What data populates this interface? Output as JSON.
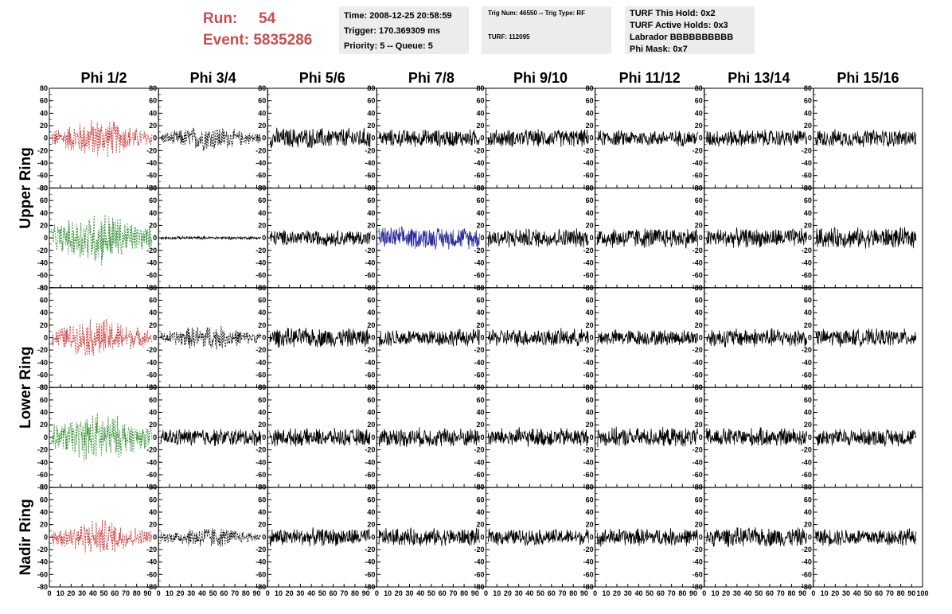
{
  "header": {
    "run_label": "Run:",
    "run_value": "54",
    "event_label": "Event:",
    "event_value": "5835286",
    "run_color": "#cc4b4b"
  },
  "info_time": {
    "time": "Time: 2008-12-25 20:58:59",
    "trigger": "Trigger: 170.369309 ms",
    "priority": "Priority: 5 -- Queue: 5"
  },
  "info_trig": {
    "trig": "Trig Num: 46550 -- Trig Type: RF",
    "turf": "TURF: 112095"
  },
  "info_turf": {
    "this_hold": "TURF This Hold: 0x2",
    "active_holds": "TURF Active Holds: 0x3",
    "labrador": "Labrador BBBBBBBBBB",
    "phi_mask": "Phi Mask: 0x7"
  },
  "chart_data": {
    "type": "line",
    "columns": [
      "Phi 1/2",
      "Phi 3/4",
      "Phi 5/6",
      "Phi 7/8",
      "Phi 9/10",
      "Phi 11/12",
      "Phi 13/14",
      "Phi 15/16"
    ],
    "rows": [
      "Upper Ring",
      "Upper Ring",
      "Lower Ring",
      "Lower Ring",
      "Nadir Ring"
    ],
    "row_labels": [
      {
        "text": "Upper Ring",
        "rows": [
          0,
          1
        ]
      },
      {
        "text": "Lower Ring",
        "rows": [
          2,
          3
        ]
      },
      {
        "text": "Nadir Ring",
        "rows": [
          4
        ]
      }
    ],
    "xlim": [
      0,
      100
    ],
    "ylim": [
      -80,
      80
    ],
    "x_ticks": [
      0,
      10,
      20,
      30,
      40,
      50,
      60,
      70,
      80,
      90
    ],
    "y_ticks": [
      -80,
      -60,
      -40,
      -20,
      0,
      20,
      40,
      60,
      80
    ],
    "grid": false,
    "colors": {
      "red": "#c83232",
      "green": "#2a8c2a",
      "blue": "#2b2b9c",
      "black": "#000000"
    },
    "panels": [
      [
        {
          "color": "red",
          "dashed": true,
          "amp": 22
        },
        {
          "color": "black",
          "dashed": true,
          "amp": 14
        },
        {
          "color": "black",
          "dashed": false,
          "amp": 14
        },
        {
          "color": "black",
          "dashed": false,
          "amp": 12
        },
        {
          "color": "black",
          "dashed": false,
          "amp": 12
        },
        {
          "color": "black",
          "dashed": false,
          "amp": 11
        },
        {
          "color": "black",
          "dashed": false,
          "amp": 12
        },
        {
          "color": "black",
          "dashed": false,
          "amp": 12
        }
      ],
      [
        {
          "color": "green",
          "dashed": true,
          "amp": 30
        },
        {
          "color": "black",
          "dashed": false,
          "amp": 2
        },
        {
          "color": "black",
          "dashed": false,
          "amp": 11
        },
        {
          "color": "blue",
          "dashed": false,
          "amp": 15
        },
        {
          "color": "black",
          "dashed": false,
          "amp": 13
        },
        {
          "color": "black",
          "dashed": false,
          "amp": 14
        },
        {
          "color": "black",
          "dashed": false,
          "amp": 13
        },
        {
          "color": "black",
          "dashed": false,
          "amp": 14
        }
      ],
      [
        {
          "color": "red",
          "dashed": true,
          "amp": 22
        },
        {
          "color": "black",
          "dashed": true,
          "amp": 14
        },
        {
          "color": "black",
          "dashed": false,
          "amp": 13
        },
        {
          "color": "black",
          "dashed": false,
          "amp": 12
        },
        {
          "color": "black",
          "dashed": false,
          "amp": 12
        },
        {
          "color": "black",
          "dashed": false,
          "amp": 11
        },
        {
          "color": "black",
          "dashed": false,
          "amp": 13
        },
        {
          "color": "black",
          "dashed": false,
          "amp": 12
        }
      ],
      [
        {
          "color": "green",
          "dashed": true,
          "amp": 28
        },
        {
          "color": "black",
          "dashed": false,
          "amp": 12
        },
        {
          "color": "black",
          "dashed": false,
          "amp": 12
        },
        {
          "color": "black",
          "dashed": false,
          "amp": 13
        },
        {
          "color": "black",
          "dashed": false,
          "amp": 13
        },
        {
          "color": "black",
          "dashed": false,
          "amp": 13
        },
        {
          "color": "black",
          "dashed": false,
          "amp": 13
        },
        {
          "color": "black",
          "dashed": false,
          "amp": 12
        }
      ],
      [
        {
          "color": "red",
          "dashed": true,
          "amp": 20
        },
        {
          "color": "black",
          "dashed": true,
          "amp": 12
        },
        {
          "color": "black",
          "dashed": false,
          "amp": 12
        },
        {
          "color": "black",
          "dashed": false,
          "amp": 12
        },
        {
          "color": "black",
          "dashed": false,
          "amp": 11
        },
        {
          "color": "black",
          "dashed": false,
          "amp": 12
        },
        {
          "color": "black",
          "dashed": false,
          "amp": 13
        },
        {
          "color": "black",
          "dashed": false,
          "amp": 12
        }
      ]
    ]
  }
}
